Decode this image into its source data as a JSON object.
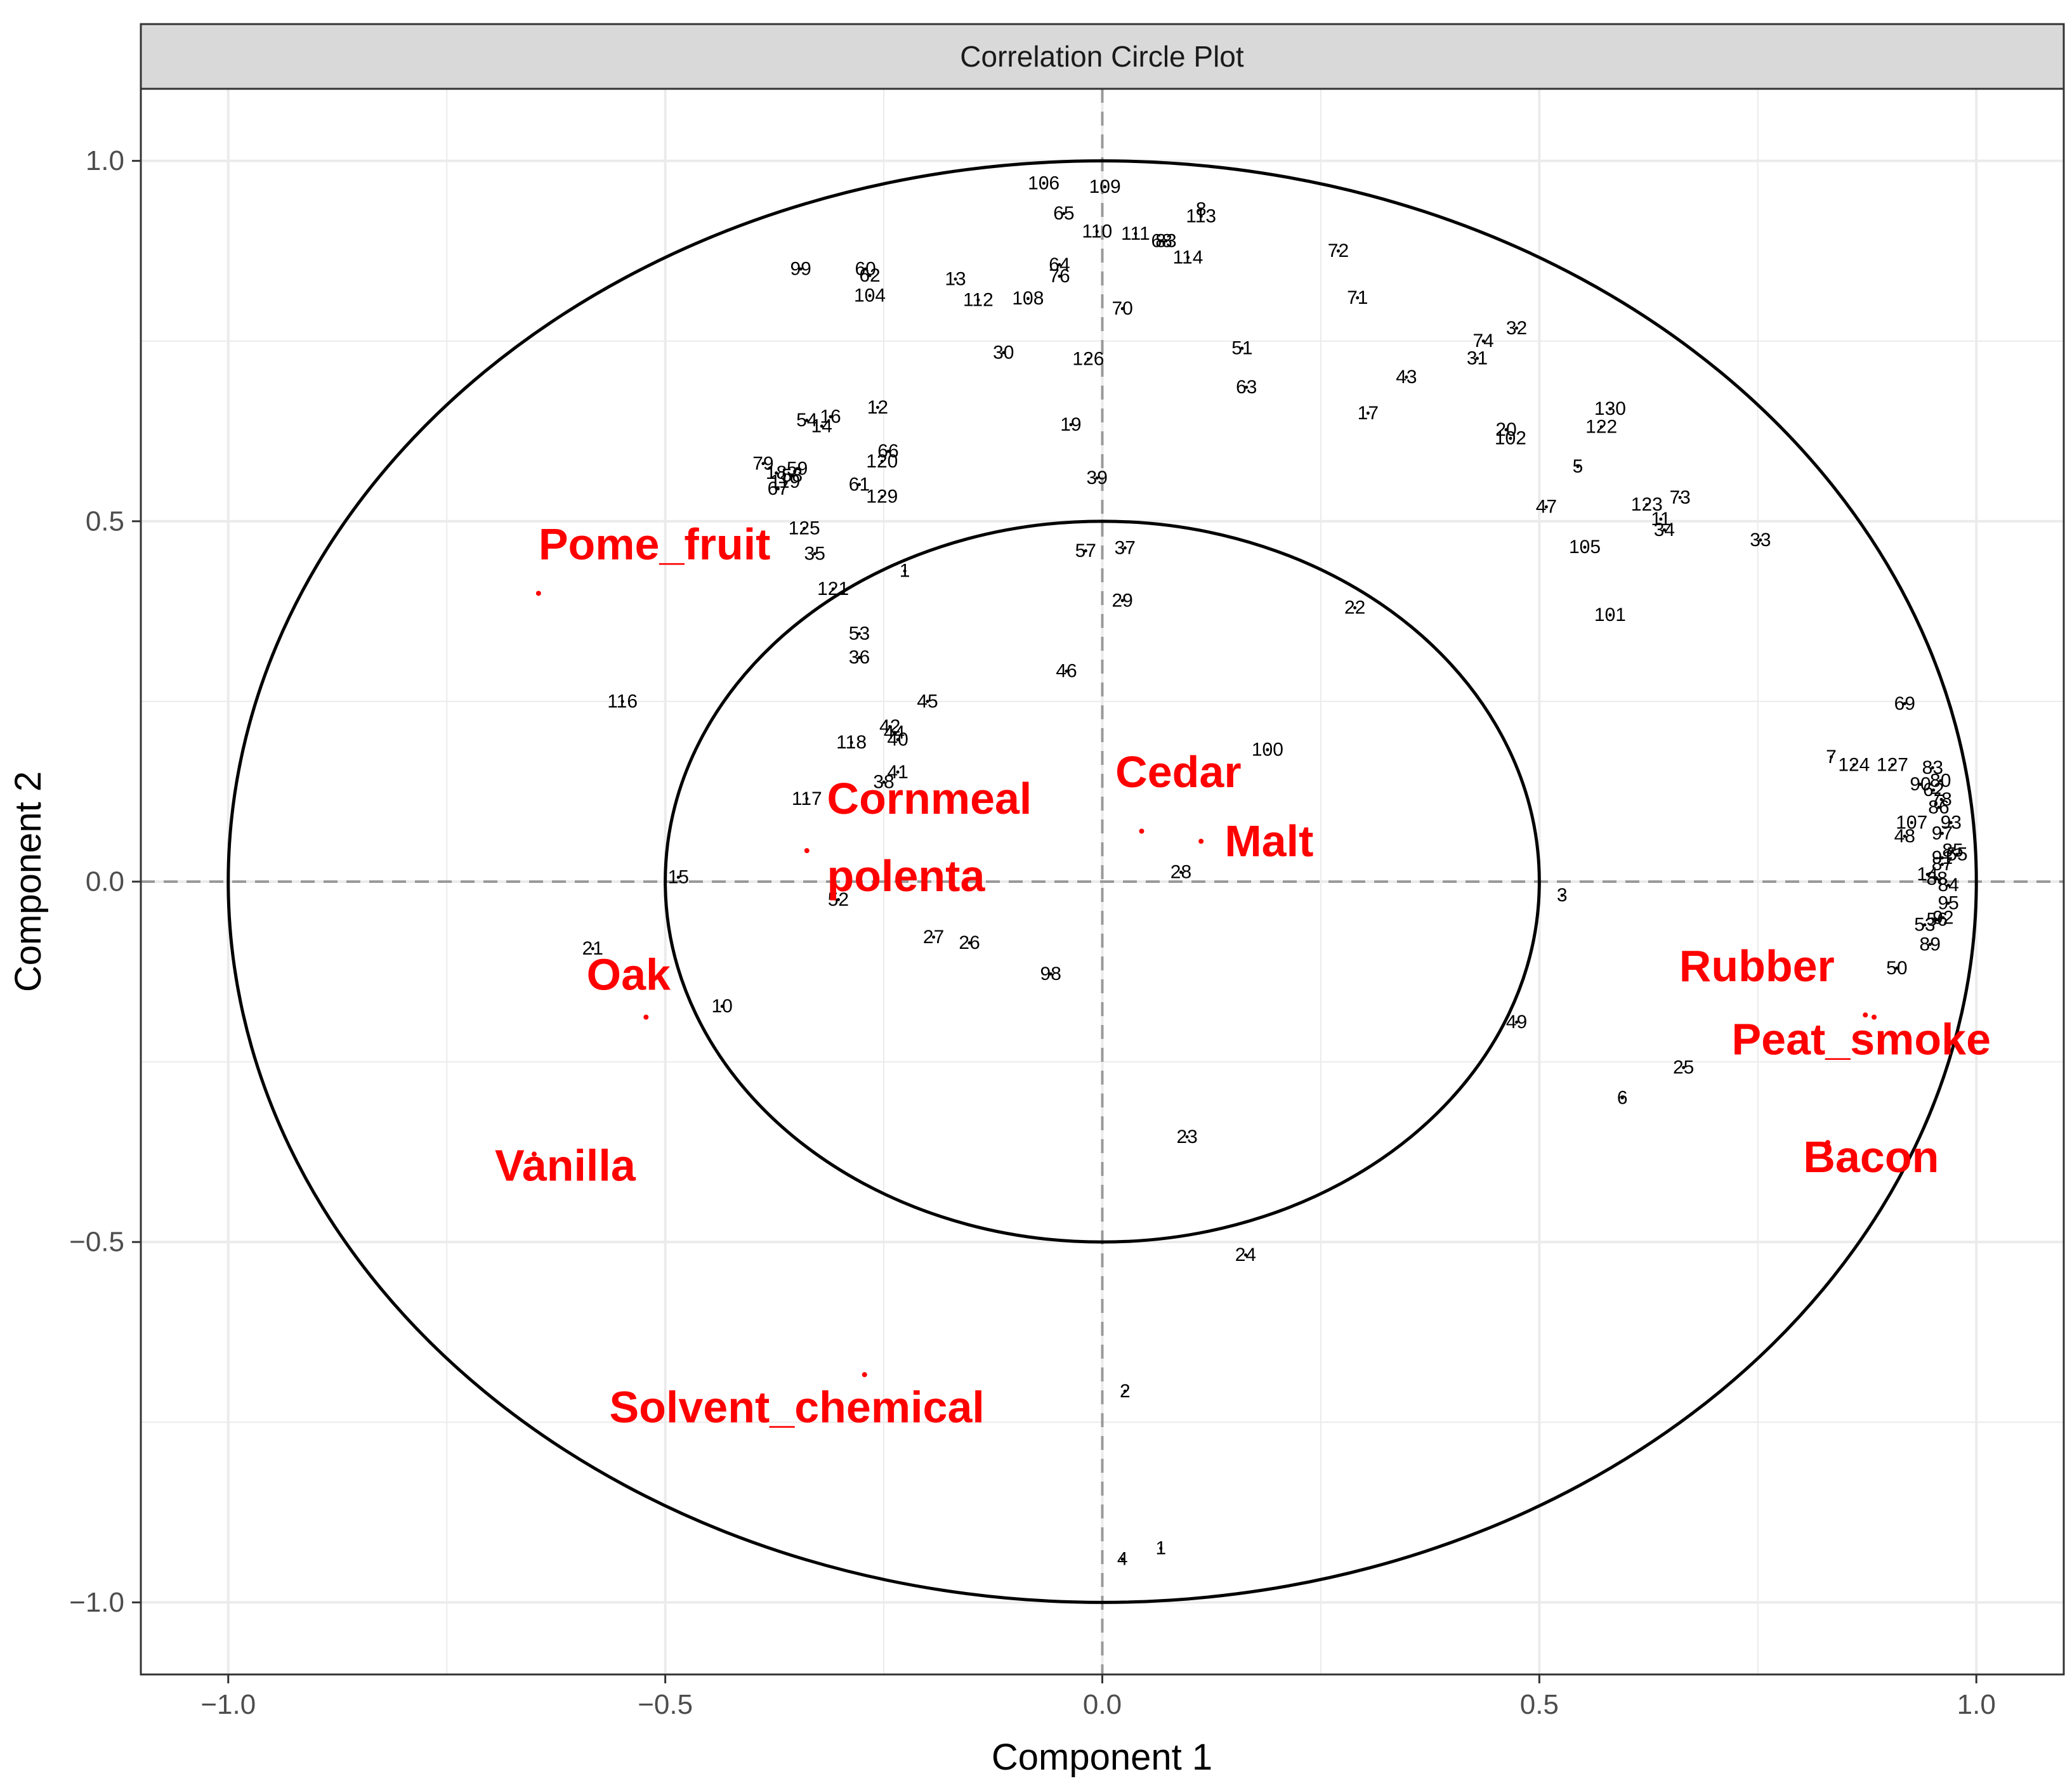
{
  "chart_data": {
    "type": "scatter",
    "title": "Correlation Circle Plot",
    "xlabel": "Component  1",
    "ylabel": "Component  2",
    "xlim": [
      -1.1,
      1.1
    ],
    "ylim": [
      -1.1,
      1.1
    ],
    "xticks": [
      -1.0,
      -0.5,
      0.0,
      0.5,
      1.0
    ],
    "yticks": [
      -1.0,
      -0.5,
      0.0,
      0.5,
      1.0
    ],
    "xtick_labels": [
      "−1.0",
      "−0.5",
      "0.0",
      "0.5",
      "1.0"
    ],
    "ytick_labels": [
      "−1.0",
      "−0.5",
      "0.0",
      "0.5",
      "1.0"
    ],
    "circles": [
      1.0,
      0.5
    ],
    "grid": true,
    "colors": {
      "samples": "#000000",
      "variables": "#ff0000",
      "strip": "#d9d9d9",
      "grid": "#ebebeb",
      "refline": "#999999"
    },
    "variables": [
      {
        "label": "Pome_fruit",
        "x": -0.645,
        "y": 0.4,
        "lx": -0.645,
        "ly": 0.447
      },
      {
        "label": "Cornmeal\npolenta",
        "x": -0.338,
        "y": 0.043,
        "lx": -0.315,
        "ly": 0.094
      },
      {
        "label": "Cedar",
        "x": 0.045,
        "y": 0.07,
        "lx": 0.015,
        "ly": 0.131
      },
      {
        "label": "Malt",
        "x": 0.113,
        "y": 0.056,
        "lx": 0.14,
        "ly": 0.035
      },
      {
        "label": "Oak",
        "x": -0.522,
        "y": -0.188,
        "lx": -0.59,
        "ly": -0.15
      },
      {
        "label": "Vanilla",
        "x": -0.65,
        "y": -0.378,
        "lx": -0.695,
        "ly": -0.415
      },
      {
        "label": "Solvent_chemical",
        "x": -0.272,
        "y": -0.684,
        "lx": -0.564,
        "ly": -0.75
      },
      {
        "label": "Rubber",
        "x": 0.873,
        "y": -0.185,
        "lx": 0.66,
        "ly": -0.138
      },
      {
        "label": "Peat_smoke",
        "x": 0.883,
        "y": -0.188,
        "lx": 0.72,
        "ly": -0.24
      },
      {
        "label": "Bacon",
        "x": 0.83,
        "y": -0.362,
        "lx": 0.802,
        "ly": -0.403
      }
    ],
    "points": [
      {
        "label": "106",
        "x": -0.067,
        "y": 0.969
      },
      {
        "label": "109",
        "x": 0.003,
        "y": 0.964
      },
      {
        "label": "65",
        "x": -0.044,
        "y": 0.927
      },
      {
        "label": "8",
        "x": 0.113,
        "y": 0.933
      },
      {
        "label": "113",
        "x": 0.113,
        "y": 0.923
      },
      {
        "label": "110",
        "x": -0.006,
        "y": 0.902
      },
      {
        "label": "111",
        "x": 0.038,
        "y": 0.899
      },
      {
        "label": "68",
        "x": 0.068,
        "y": 0.889
      },
      {
        "label": "83",
        "x": 0.073,
        "y": 0.889
      },
      {
        "label": "114",
        "x": 0.098,
        "y": 0.866
      },
      {
        "label": "72",
        "x": 0.27,
        "y": 0.875
      },
      {
        "label": "99",
        "x": -0.345,
        "y": 0.85
      },
      {
        "label": "60",
        "x": -0.271,
        "y": 0.85
      },
      {
        "label": "62",
        "x": -0.266,
        "y": 0.841
      },
      {
        "label": "64",
        "x": -0.049,
        "y": 0.856
      },
      {
        "label": "76",
        "x": -0.049,
        "y": 0.84
      },
      {
        "label": "13",
        "x": -0.168,
        "y": 0.836
      },
      {
        "label": "104",
        "x": -0.266,
        "y": 0.813
      },
      {
        "label": "112",
        "x": -0.142,
        "y": 0.807
      },
      {
        "label": "108",
        "x": -0.085,
        "y": 0.809
      },
      {
        "label": "70",
        "x": 0.023,
        "y": 0.795
      },
      {
        "label": "71",
        "x": 0.292,
        "y": 0.81
      },
      {
        "label": "32",
        "x": 0.474,
        "y": 0.768
      },
      {
        "label": "74",
        "x": 0.436,
        "y": 0.75
      },
      {
        "label": "51",
        "x": 0.16,
        "y": 0.74
      },
      {
        "label": "30",
        "x": -0.113,
        "y": 0.734
      },
      {
        "label": "126",
        "x": -0.016,
        "y": 0.725
      },
      {
        "label": "31",
        "x": 0.429,
        "y": 0.726
      },
      {
        "label": "43",
        "x": 0.348,
        "y": 0.7
      },
      {
        "label": "63",
        "x": 0.165,
        "y": 0.686
      },
      {
        "label": "130",
        "x": 0.581,
        "y": 0.656
      },
      {
        "label": "12",
        "x": -0.257,
        "y": 0.658
      },
      {
        "label": "17",
        "x": 0.304,
        "y": 0.65
      },
      {
        "label": "16",
        "x": -0.311,
        "y": 0.645
      },
      {
        "label": "54",
        "x": -0.338,
        "y": 0.64
      },
      {
        "label": "14",
        "x": -0.321,
        "y": 0.632
      },
      {
        "label": "19",
        "x": -0.036,
        "y": 0.634
      },
      {
        "label": "122",
        "x": 0.571,
        "y": 0.631
      },
      {
        "label": "20",
        "x": 0.462,
        "y": 0.627
      },
      {
        "label": "102",
        "x": 0.467,
        "y": 0.615
      },
      {
        "label": "66",
        "x": -0.245,
        "y": 0.597
      },
      {
        "label": "120",
        "x": -0.252,
        "y": 0.583
      },
      {
        "label": "79",
        "x": -0.388,
        "y": 0.58
      },
      {
        "label": "59",
        "x": -0.349,
        "y": 0.573
      },
      {
        "label": "58",
        "x": -0.355,
        "y": 0.563
      },
      {
        "label": "18",
        "x": -0.373,
        "y": 0.567
      },
      {
        "label": "5",
        "x": 0.544,
        "y": 0.576
      },
      {
        "label": "39",
        "x": -0.006,
        "y": 0.56
      },
      {
        "label": "119",
        "x": -0.363,
        "y": 0.555
      },
      {
        "label": "67",
        "x": -0.371,
        "y": 0.545
      },
      {
        "label": "61",
        "x": -0.278,
        "y": 0.551
      },
      {
        "label": "129",
        "x": -0.252,
        "y": 0.534
      },
      {
        "label": "73",
        "x": 0.661,
        "y": 0.533
      },
      {
        "label": "123",
        "x": 0.623,
        "y": 0.523
      },
      {
        "label": "47",
        "x": 0.508,
        "y": 0.52
      },
      {
        "label": "11",
        "x": 0.639,
        "y": 0.503
      },
      {
        "label": "34",
        "x": 0.643,
        "y": 0.488
      },
      {
        "label": "125",
        "x": -0.341,
        "y": 0.49
      },
      {
        "label": "33",
        "x": 0.753,
        "y": 0.474
      },
      {
        "label": "105",
        "x": 0.552,
        "y": 0.464
      },
      {
        "label": "57",
        "x": -0.019,
        "y": 0.459
      },
      {
        "label": "37",
        "x": 0.026,
        "y": 0.463
      },
      {
        "label": "35",
        "x": -0.329,
        "y": 0.455
      },
      {
        "label": "1",
        "x": -0.226,
        "y": 0.431
      },
      {
        "label": "121",
        "x": -0.308,
        "y": 0.406
      },
      {
        "label": "29",
        "x": 0.023,
        "y": 0.39
      },
      {
        "label": "22",
        "x": 0.289,
        "y": 0.38
      },
      {
        "label": "101",
        "x": 0.581,
        "y": 0.37
      },
      {
        "label": "53",
        "x": -0.278,
        "y": 0.344
      },
      {
        "label": "36",
        "x": -0.278,
        "y": 0.311
      },
      {
        "label": "46",
        "x": -0.041,
        "y": 0.292
      },
      {
        "label": "116",
        "x": -0.549,
        "y": 0.25
      },
      {
        "label": "45",
        "x": -0.2,
        "y": 0.25
      },
      {
        "label": "69",
        "x": 0.918,
        "y": 0.247
      },
      {
        "label": "42",
        "x": -0.243,
        "y": 0.215
      },
      {
        "label": "44",
        "x": -0.238,
        "y": 0.207
      },
      {
        "label": "40",
        "x": -0.234,
        "y": 0.197
      },
      {
        "label": "118",
        "x": -0.287,
        "y": 0.193
      },
      {
        "label": "100",
        "x": 0.189,
        "y": 0.183
      },
      {
        "label": "7",
        "x": 0.834,
        "y": 0.173
      },
      {
        "label": "124",
        "x": 0.86,
        "y": 0.162
      },
      {
        "label": "127",
        "x": 0.904,
        "y": 0.162
      },
      {
        "label": "41",
        "x": -0.234,
        "y": 0.152
      },
      {
        "label": "83",
        "x": 0.95,
        "y": 0.158
      },
      {
        "label": "38",
        "x": -0.25,
        "y": 0.138
      },
      {
        "label": "80",
        "x": 0.959,
        "y": 0.14
      },
      {
        "label": "90",
        "x": 0.936,
        "y": 0.135
      },
      {
        "label": "62",
        "x": 0.951,
        "y": 0.127
      },
      {
        "label": "117",
        "x": -0.338,
        "y": 0.115
      },
      {
        "label": "78",
        "x": 0.96,
        "y": 0.114
      },
      {
        "label": "86",
        "x": 0.957,
        "y": 0.103
      },
      {
        "label": "107",
        "x": 0.926,
        "y": 0.082
      },
      {
        "label": "93",
        "x": 0.971,
        "y": 0.082
      },
      {
        "label": "48",
        "x": 0.918,
        "y": 0.063
      },
      {
        "label": "97",
        "x": 0.961,
        "y": 0.067
      },
      {
        "label": "85",
        "x": 0.973,
        "y": 0.043
      },
      {
        "label": "55",
        "x": 0.978,
        "y": 0.038
      },
      {
        "label": "91",
        "x": 0.961,
        "y": 0.033
      },
      {
        "label": "87",
        "x": 0.961,
        "y": 0.024
      },
      {
        "label": "15",
        "x": -0.485,
        "y": 0.006
      },
      {
        "label": "28",
        "x": 0.09,
        "y": 0.013
      },
      {
        "label": "14",
        "x": 0.944,
        "y": 0.01
      },
      {
        "label": "88",
        "x": 0.955,
        "y": 0.004
      },
      {
        "label": "84",
        "x": 0.968,
        "y": -0.005
      },
      {
        "label": "3",
        "x": 0.526,
        "y": -0.019
      },
      {
        "label": "52",
        "x": -0.302,
        "y": -0.025
      },
      {
        "label": "95",
        "x": 0.968,
        "y": -0.03
      },
      {
        "label": "92",
        "x": 0.962,
        "y": -0.05
      },
      {
        "label": "56",
        "x": 0.955,
        "y": -0.053
      },
      {
        "label": "53",
        "x": 0.941,
        "y": -0.06
      },
      {
        "label": "89",
        "x": 0.947,
        "y": -0.087
      },
      {
        "label": "21",
        "x": -0.583,
        "y": -0.093
      },
      {
        "label": "27",
        "x": -0.193,
        "y": -0.077
      },
      {
        "label": "26",
        "x": -0.152,
        "y": -0.085
      },
      {
        "label": "50",
        "x": 0.909,
        "y": -0.12
      },
      {
        "label": "98",
        "x": -0.059,
        "y": -0.128
      },
      {
        "label": "10",
        "x": -0.435,
        "y": -0.173
      },
      {
        "label": "49",
        "x": 0.474,
        "y": -0.195
      },
      {
        "label": "25",
        "x": 0.665,
        "y": -0.258
      },
      {
        "label": "6",
        "x": 0.595,
        "y": -0.3
      },
      {
        "label": "23",
        "x": 0.097,
        "y": -0.354
      },
      {
        "label": "24",
        "x": 0.164,
        "y": -0.518
      },
      {
        "label": "2",
        "x": 0.026,
        "y": -0.707
      },
      {
        "label": "1",
        "x": 0.067,
        "y": -0.925
      },
      {
        "label": "4",
        "x": 0.023,
        "y": -0.94
      }
    ]
  }
}
